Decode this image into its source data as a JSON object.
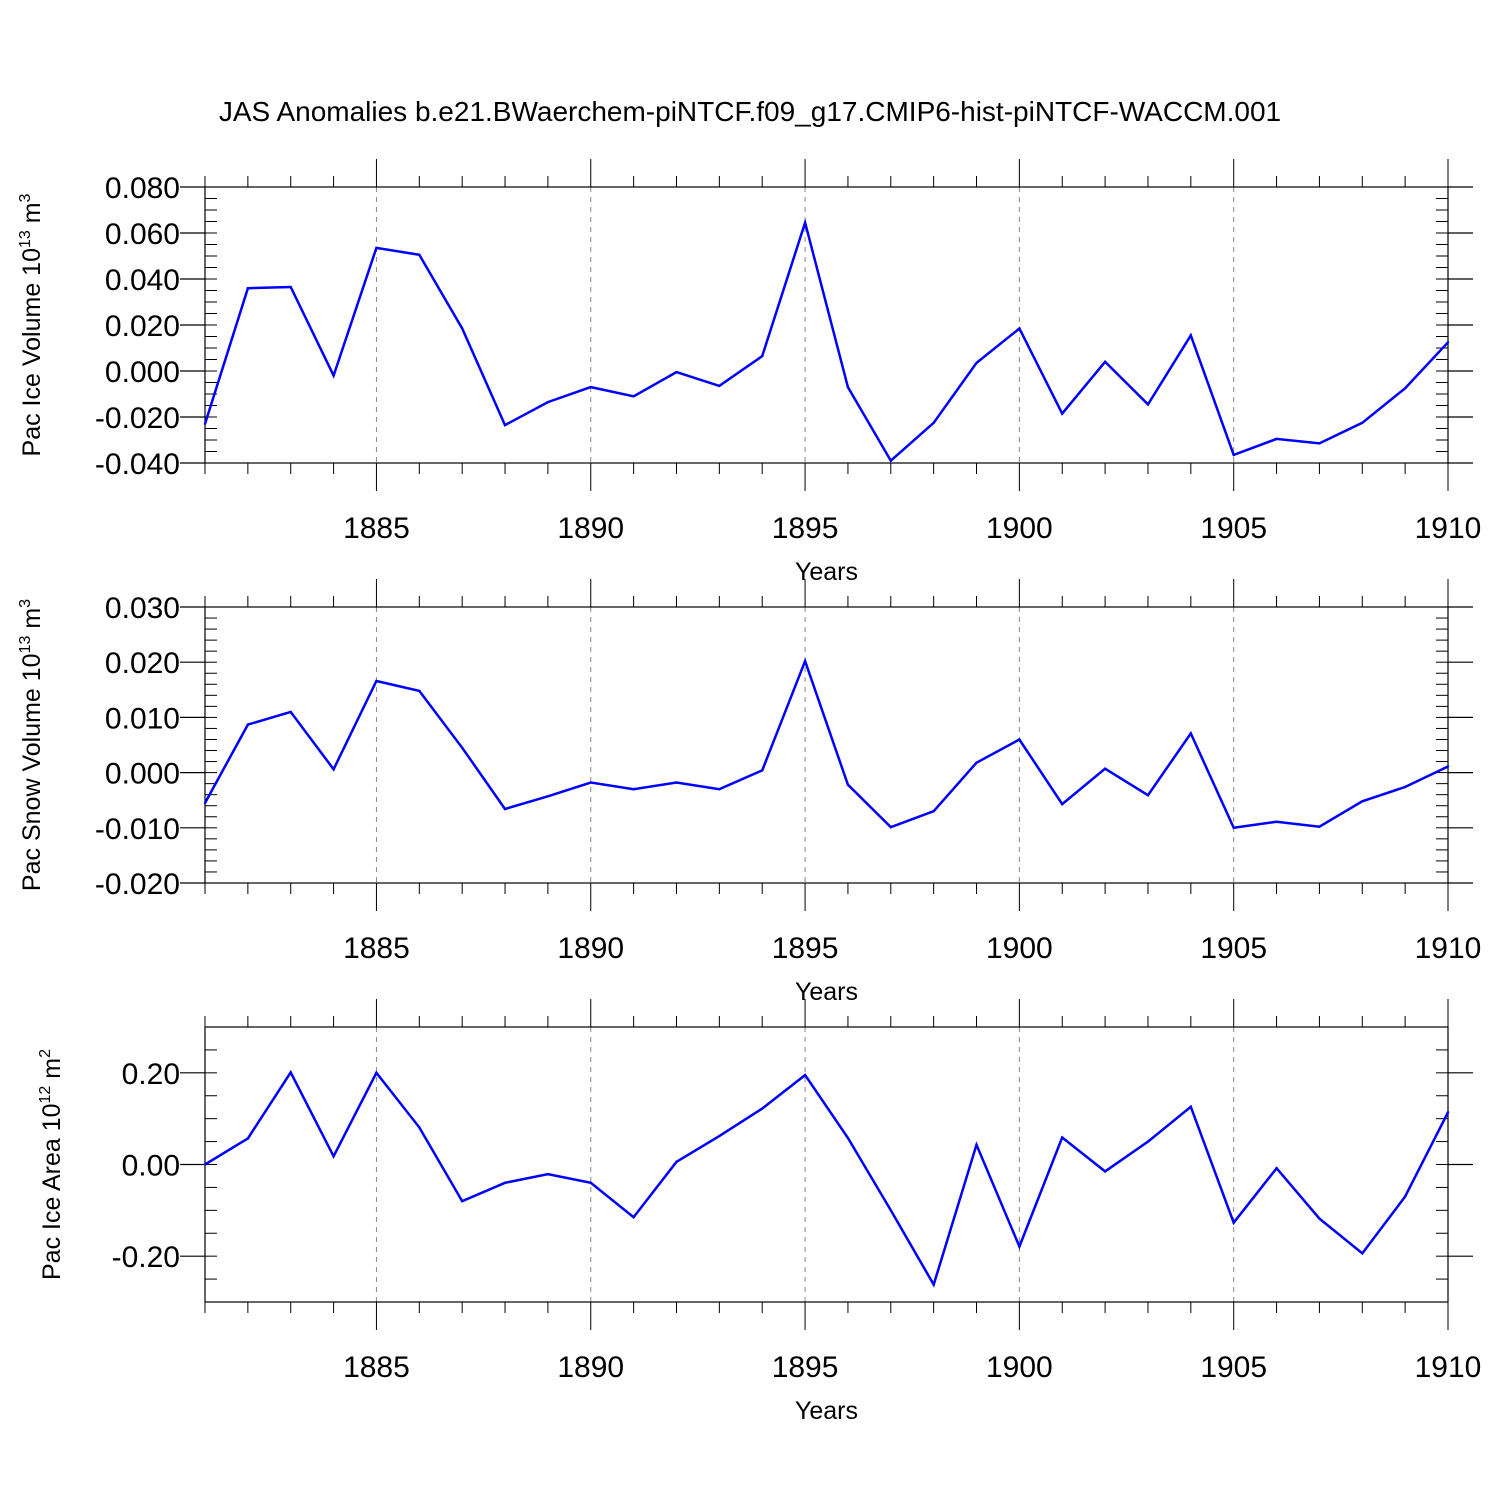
{
  "figure": {
    "title": "JAS Anomalies b.e21.BWaerchem-piNTCF.f09_g17.CMIP6-hist-piNTCF-WACCM.001",
    "line_color": "#0000ff"
  },
  "chart_data": [
    {
      "type": "line",
      "xlabel": "Years",
      "ylabel": "Pac Ice Volume 10",
      "ylabel_exp": "13",
      "ylabel_unit": " m",
      "ylabel_unit_exp": "3",
      "xlim": [
        1881,
        1910
      ],
      "ylim": [
        -0.04,
        0.08
      ],
      "yticks": [
        -0.04,
        -0.02,
        0.0,
        0.02,
        0.04,
        0.06,
        0.08
      ],
      "ytick_labels": [
        "-0.040",
        "-0.020",
        "0.000",
        "0.020",
        "0.040",
        "0.060",
        "0.080"
      ],
      "yminor_step": 0.005,
      "xticks": [
        1885,
        1890,
        1895,
        1900,
        1905,
        1910
      ],
      "xtick_labels": [
        "1885",
        "1890",
        "1895",
        "1900",
        "1905",
        "1910"
      ],
      "grid": "vertical dashed at major x ticks",
      "x": [
        1881,
        1882,
        1883,
        1884,
        1885,
        1886,
        1887,
        1888,
        1889,
        1890,
        1891,
        1892,
        1893,
        1894,
        1895,
        1896,
        1897,
        1898,
        1899,
        1900,
        1901,
        1902,
        1903,
        1904,
        1905,
        1906,
        1907,
        1908,
        1909,
        1910
      ],
      "series": [
        {
          "values": [
            -0.023,
            0.036,
            0.0365,
            -0.002,
            0.0535,
            0.0505,
            0.0185,
            -0.0235,
            -0.0135,
            -0.007,
            -0.011,
            -0.0005,
            -0.0065,
            0.0065,
            0.0645,
            -0.007,
            -0.039,
            -0.0225,
            0.0035,
            0.0185,
            -0.0185,
            0.004,
            -0.0145,
            0.0155,
            -0.0365,
            -0.0295,
            -0.0315,
            -0.0225,
            -0.0075,
            0.0125
          ]
        }
      ]
    },
    {
      "type": "line",
      "xlabel": "Years",
      "ylabel": "Pac Snow Volume 10",
      "ylabel_exp": "13",
      "ylabel_unit": " m",
      "ylabel_unit_exp": "3",
      "xlim": [
        1881,
        1910
      ],
      "ylim": [
        -0.02,
        0.03
      ],
      "yticks": [
        -0.02,
        -0.01,
        0.0,
        0.01,
        0.02,
        0.03
      ],
      "ytick_labels": [
        "-0.020",
        "-0.010",
        "0.000",
        "0.010",
        "0.020",
        "0.030"
      ],
      "yminor_step": 0.002,
      "xticks": [
        1885,
        1890,
        1895,
        1900,
        1905,
        1910
      ],
      "xtick_labels": [
        "1885",
        "1890",
        "1895",
        "1900",
        "1905",
        "1910"
      ],
      "grid": "vertical dashed at major x ticks",
      "x": [
        1881,
        1882,
        1883,
        1884,
        1885,
        1886,
        1887,
        1888,
        1889,
        1890,
        1891,
        1892,
        1893,
        1894,
        1895,
        1896,
        1897,
        1898,
        1899,
        1900,
        1901,
        1902,
        1903,
        1904,
        1905,
        1906,
        1907,
        1908,
        1909,
        1910
      ],
      "series": [
        {
          "values": [
            -0.0055,
            0.0087,
            0.011,
            0.0006,
            0.0166,
            0.0148,
            0.0045,
            -0.0066,
            -0.0043,
            -0.0018,
            -0.003,
            -0.0018,
            -0.003,
            0.0004,
            0.0202,
            -0.0022,
            -0.0099,
            -0.007,
            0.0018,
            0.006,
            -0.0057,
            0.0007,
            -0.0041,
            0.0071,
            -0.01,
            -0.0089,
            -0.0098,
            -0.0052,
            -0.0026,
            0.0011
          ]
        }
      ]
    },
    {
      "type": "line",
      "xlabel": "Years",
      "ylabel": "Pac Ice Area 10",
      "ylabel_exp": "12",
      "ylabel_unit": " m",
      "ylabel_unit_exp": "2",
      "xlim": [
        1881,
        1910
      ],
      "ylim": [
        -0.3,
        0.3
      ],
      "yticks": [
        -0.2,
        0.0,
        0.2
      ],
      "ytick_labels": [
        "-0.20",
        "0.00",
        "0.20"
      ],
      "yminor_step": 0.05,
      "xticks": [
        1885,
        1890,
        1895,
        1900,
        1905,
        1910
      ],
      "xtick_labels": [
        "1885",
        "1890",
        "1895",
        "1900",
        "1905",
        "1910"
      ],
      "grid": "vertical dashed at major x ticks",
      "x": [
        1881,
        1882,
        1883,
        1884,
        1885,
        1886,
        1887,
        1888,
        1889,
        1890,
        1891,
        1892,
        1893,
        1894,
        1895,
        1896,
        1897,
        1898,
        1899,
        1900,
        1901,
        1902,
        1903,
        1904,
        1905,
        1906,
        1907,
        1908,
        1909,
        1910
      ],
      "series": [
        {
          "values": [
            0.0,
            0.057,
            0.201,
            0.018,
            0.2,
            0.081,
            -0.08,
            -0.04,
            -0.021,
            -0.04,
            -0.115,
            0.006,
            0.062,
            0.122,
            0.195,
            0.058,
            -0.1,
            -0.262,
            0.043,
            -0.179,
            0.059,
            -0.015,
            0.05,
            0.126,
            -0.127,
            -0.008,
            -0.118,
            -0.194,
            -0.07,
            0.114
          ]
        }
      ]
    }
  ]
}
